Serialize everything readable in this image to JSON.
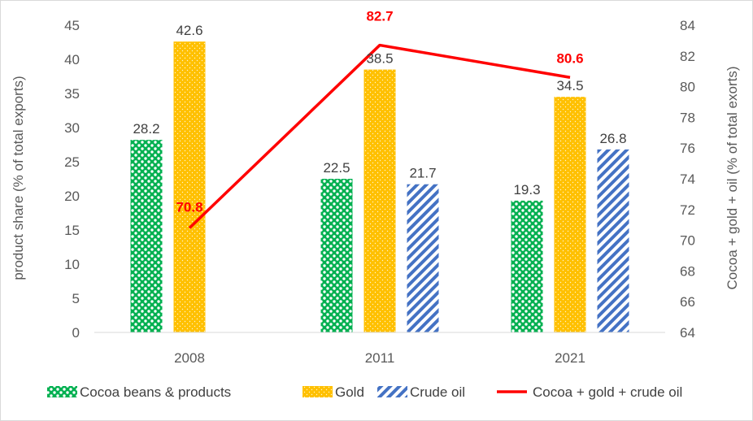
{
  "chart_data": {
    "type": "bar",
    "categories": [
      "2008",
      "2011",
      "2021"
    ],
    "series": [
      {
        "name": "Cocoa beans & products",
        "values": [
          28.2,
          22.5,
          19.3
        ],
        "color": "#00b050",
        "axis": "left"
      },
      {
        "name": "Gold",
        "values": [
          42.6,
          38.5,
          34.5
        ],
        "color": "#ffc000",
        "axis": "left"
      },
      {
        "name": "Crude oil",
        "values": [
          null,
          21.7,
          26.8
        ],
        "color": "#4472c4",
        "axis": "left"
      },
      {
        "name": "Cocoa + gold + crude oil",
        "values": [
          70.8,
          82.7,
          80.6
        ],
        "color": "#ff0000",
        "axis": "right",
        "type": "line"
      }
    ],
    "bar_labels": [
      [
        "28.2",
        "22.5",
        "19.3"
      ],
      [
        "42.6",
        "38.5",
        "34.5"
      ],
      [
        "",
        "21.7",
        "26.8"
      ]
    ],
    "line_labels": [
      "70.8",
      "82.7",
      "80.6"
    ],
    "ylabel": "product share (% of total exports)",
    "y2label": "Cocoa + gold + oil (% of total exorts)",
    "ylim": [
      0,
      45
    ],
    "y2lim": [
      64,
      84
    ],
    "yticks": [
      "0",
      "5",
      "10",
      "15",
      "20",
      "25",
      "30",
      "35",
      "40",
      "45"
    ],
    "y2ticks": [
      "64",
      "66",
      "68",
      "70",
      "72",
      "74",
      "76",
      "78",
      "80",
      "82",
      "84"
    ],
    "grid": false,
    "legend_position": "bottom"
  }
}
